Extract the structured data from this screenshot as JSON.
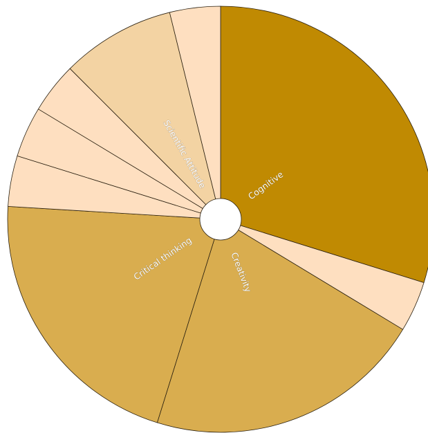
{
  "chart_data": {
    "type": "pie",
    "title": "",
    "slices": [
      {
        "label": "Cognitive",
        "value": 31,
        "color": "#C08A02"
      },
      {
        "label": "",
        "value": 4,
        "color": "#FEDFC0"
      },
      {
        "label": "Creativity",
        "value": 22,
        "color": "#D9AD4F"
      },
      {
        "label": "Critical thinking",
        "value": 22,
        "color": "#D9AD4F"
      },
      {
        "label": "",
        "value": 4,
        "color": "#FEDFC0"
      },
      {
        "label": "",
        "value": 4,
        "color": "#FEDFC0"
      },
      {
        "label": "",
        "value": 4,
        "color": "#FEDFC0"
      },
      {
        "label": "Scientific Attitude",
        "value": 9,
        "color": "#F3D3A3"
      },
      {
        "label": "",
        "value": 4,
        "color": "#FEDFC0"
      }
    ],
    "start_angle": "12 o'clock",
    "direction": "clockwise",
    "center_hole": true,
    "legend": "none"
  }
}
